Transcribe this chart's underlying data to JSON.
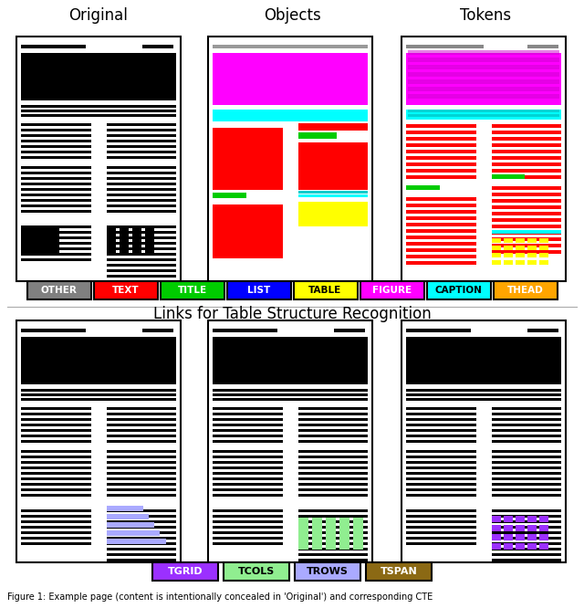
{
  "section1_titles": [
    "Original",
    "Objects",
    "Tokens"
  ],
  "section2_title": "Links for Table Structure Recognition",
  "legend1": [
    {
      "label": "OTHER",
      "color": "#808080",
      "text_color": "white"
    },
    {
      "label": "TEXT",
      "color": "#ff0000",
      "text_color": "white"
    },
    {
      "label": "TITLE",
      "color": "#00cc00",
      "text_color": "white"
    },
    {
      "label": "LIST",
      "color": "#0000ff",
      "text_color": "white"
    },
    {
      "label": "TABLE",
      "color": "#ffff00",
      "text_color": "black"
    },
    {
      "label": "FIGURE",
      "color": "#ff00ff",
      "text_color": "white"
    },
    {
      "label": "CAPTION",
      "color": "#00ffff",
      "text_color": "black"
    },
    {
      "label": "THEAD",
      "color": "#ffa500",
      "text_color": "white"
    }
  ],
  "legend2": [
    {
      "label": "TGRID",
      "color": "#9b30ff",
      "text_color": "white"
    },
    {
      "label": "TCOLS",
      "color": "#90ee90",
      "text_color": "black"
    },
    {
      "label": "TROWS",
      "color": "#aaaaff",
      "text_color": "black"
    },
    {
      "label": "TSPAN",
      "color": "#8b6914",
      "text_color": "white"
    }
  ],
  "caption": "Figure 1: Example page (content is intentionally concealed in 'Original') and corresponding CTE",
  "bg_color": "#ffffff"
}
